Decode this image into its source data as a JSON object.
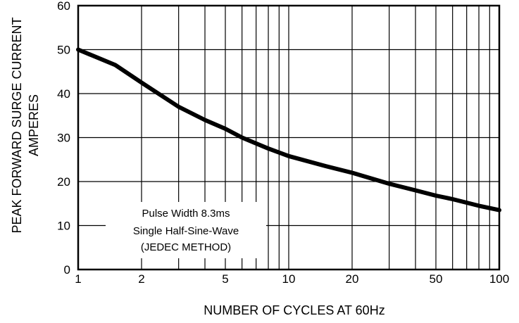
{
  "chart_data": {
    "type": "line",
    "xscale": "log",
    "grid": true,
    "xlabel": "NUMBER OF CYCLES AT 60Hz",
    "ylabel_lines": [
      "PEAK FORWARD SURGE CURRENT",
      "AMPERES"
    ],
    "xlim": [
      1,
      100
    ],
    "ylim": [
      0,
      60
    ],
    "x_ticks": [
      1,
      2,
      5,
      10,
      20,
      50,
      100
    ],
    "x_tick_labels": [
      "1",
      "2",
      "5",
      "10",
      "20",
      "50",
      "100"
    ],
    "y_ticks": [
      0,
      10,
      20,
      30,
      40,
      50,
      60
    ],
    "y_tick_labels": [
      "0",
      "10",
      "20",
      "30",
      "40",
      "50",
      "60"
    ],
    "annotation": [
      "Pulse Width 8.3ms",
      "Single Half-Sine-Wave",
      "(JEDEC METHOD)"
    ],
    "series": [
      {
        "x": [
          1,
          1.5,
          2,
          3,
          4,
          5,
          6,
          8,
          10,
          15,
          20,
          30,
          40,
          50,
          60,
          80,
          100
        ],
        "values": [
          50,
          46.5,
          42.5,
          37,
          34,
          32,
          30,
          27.5,
          25.8,
          23.5,
          22,
          19.5,
          18,
          16.8,
          16,
          14.5,
          13.5
        ]
      }
    ]
  }
}
